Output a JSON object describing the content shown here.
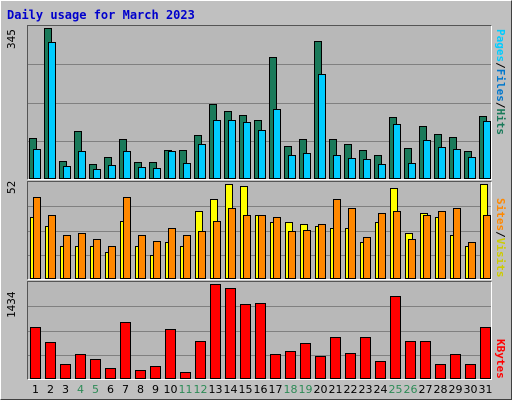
{
  "title": "Daily usage for March 2023",
  "colors": {
    "title": "#0000cc",
    "pages": "#1a7a5a",
    "files": "#00ccff",
    "hits": "#1a7a5a",
    "visits": "#ffff00",
    "sites": "#ff8800",
    "kbytes": "#ff0000",
    "weekday": "#000000",
    "weekend": "#2e8b57"
  },
  "legend": {
    "hits_files_pages": [
      "Pages",
      "/",
      "Files",
      "/",
      "Hits"
    ],
    "visits_sites": [
      "Sites",
      "/",
      "Visits"
    ],
    "kbytes": "KBytes"
  },
  "chart_data": [
    {
      "type": "bar",
      "name": "hits-files",
      "ymax_label": "345",
      "ylim": [
        0,
        345
      ],
      "categories": [
        "1",
        "2",
        "3",
        "4",
        "5",
        "6",
        "7",
        "8",
        "9",
        "10",
        "11",
        "12",
        "13",
        "14",
        "15",
        "16",
        "17",
        "18",
        "19",
        "20",
        "21",
        "22",
        "23",
        "24",
        "25",
        "26",
        "27",
        "28",
        "29",
        "30",
        "31"
      ],
      "series": [
        {
          "name": "Hits",
          "values": [
            93,
            345,
            42,
            110,
            35,
            51,
            91,
            39,
            39,
            66,
            66,
            100,
            171,
            155,
            146,
            134,
            278,
            76,
            91,
            315,
            91,
            81,
            66,
            54,
            142,
            71,
            122,
            103,
            96,
            63,
            144
          ]
        },
        {
          "name": "Files",
          "values": [
            69,
            314,
            29,
            64,
            22,
            32,
            64,
            27,
            25,
            63,
            37,
            81,
            134,
            134,
            130,
            113,
            161,
            54,
            59,
            240,
            54,
            49,
            45,
            35,
            125,
            37,
            90,
            74,
            69,
            51,
            133
          ]
        },
        {
          "name": "Pages",
          "values": [
            2,
            2,
            2,
            2,
            2,
            2,
            2,
            2,
            2,
            2,
            2,
            2,
            2,
            2,
            2,
            2,
            2,
            2,
            2,
            2,
            2,
            2,
            2,
            2,
            2,
            2,
            2,
            2,
            2,
            2,
            2
          ]
        }
      ]
    },
    {
      "type": "bar",
      "name": "visits-sites",
      "ymax_label": "52",
      "ylim": [
        0,
        52
      ],
      "categories": [
        "1",
        "2",
        "3",
        "4",
        "5",
        "6",
        "7",
        "8",
        "9",
        "10",
        "11",
        "12",
        "13",
        "14",
        "15",
        "16",
        "17",
        "18",
        "19",
        "20",
        "21",
        "22",
        "23",
        "24",
        "25",
        "26",
        "27",
        "28",
        "29",
        "30",
        "31"
      ],
      "series": [
        {
          "name": "Visits",
          "values": [
            34,
            29,
            18,
            18,
            18,
            15,
            32,
            18,
            13,
            20,
            18,
            37,
            44,
            52,
            51,
            35,
            31,
            31,
            30,
            29,
            28,
            28,
            20,
            31,
            50,
            25,
            36,
            34,
            24,
            18,
            52
          ]
        },
        {
          "name": "Sites",
          "values": [
            45,
            35,
            24,
            25,
            22,
            18,
            45,
            24,
            21,
            28,
            24,
            26,
            32,
            39,
            35,
            35,
            34,
            26,
            27,
            30,
            44,
            39,
            23,
            36,
            37,
            22,
            35,
            37,
            39,
            20,
            35
          ]
        }
      ]
    },
    {
      "type": "bar",
      "name": "kbytes",
      "ymax_label": "1434",
      "ylim": [
        0,
        1434
      ],
      "categories": [
        "1",
        "2",
        "3",
        "4",
        "5",
        "6",
        "7",
        "8",
        "9",
        "10",
        "11",
        "12",
        "13",
        "14",
        "15",
        "16",
        "17",
        "18",
        "19",
        "20",
        "21",
        "22",
        "23",
        "24",
        "25",
        "26",
        "27",
        "28",
        "29",
        "30",
        "31"
      ],
      "series": [
        {
          "name": "KBytes",
          "values": [
            780,
            560,
            230,
            370,
            300,
            160,
            860,
            130,
            190,
            760,
            110,
            580,
            1434,
            1370,
            1130,
            1140,
            380,
            420,
            550,
            340,
            640,
            390,
            640,
            270,
            1260,
            570,
            580,
            230,
            370,
            230,
            780
          ]
        }
      ]
    }
  ],
  "xaxis": {
    "labels": [
      "1",
      "2",
      "3",
      "4",
      "5",
      "6",
      "7",
      "8",
      "9",
      "10",
      "11",
      "12",
      "13",
      "14",
      "15",
      "16",
      "17",
      "18",
      "19",
      "20",
      "21",
      "22",
      "23",
      "24",
      "25",
      "26",
      "27",
      "28",
      "29",
      "30",
      "31"
    ],
    "weekend": [
      false,
      false,
      false,
      true,
      true,
      false,
      false,
      false,
      false,
      false,
      true,
      true,
      false,
      false,
      false,
      false,
      false,
      true,
      true,
      false,
      false,
      false,
      false,
      false,
      true,
      true,
      false,
      false,
      false,
      false,
      false
    ]
  }
}
